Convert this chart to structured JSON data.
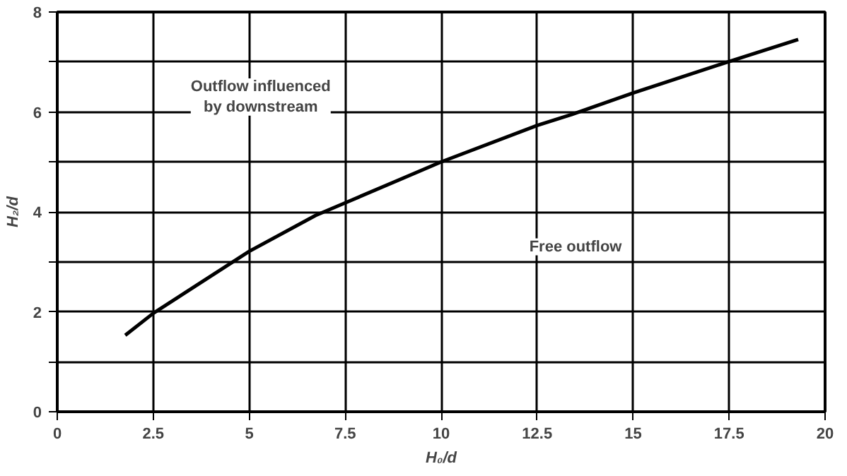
{
  "chart_data": {
    "type": "line",
    "xlabel": "H₀/d",
    "ylabel": "H₂/d",
    "x": [
      1.77,
      2.5,
      5,
      6.73,
      7.5,
      10,
      12.5,
      13.4,
      15,
      17.5,
      19.3
    ],
    "series": [
      {
        "color": "#000000",
        "values": [
          1.53,
          1.97,
          3.21,
          3.93,
          4.18,
          5.0,
          5.73,
          5.95,
          6.38,
          7.01,
          7.45
        ]
      }
    ],
    "xlim": [
      0,
      20
    ],
    "ylim": [
      0,
      8
    ],
    "xticks": [
      0,
      2.5,
      5,
      7.5,
      10,
      12.5,
      15,
      17.5,
      20
    ],
    "yticks": [
      0,
      {
        "value": 1,
        "label": null
      },
      2,
      {
        "value": 3,
        "label": null
      },
      4,
      {
        "value": 5,
        "label": null
      },
      6,
      {
        "value": 7,
        "label": null
      },
      8
    ],
    "grid": true,
    "annotations": [
      "Outflow influenced\nby downstream",
      "Free outflow"
    ]
  }
}
